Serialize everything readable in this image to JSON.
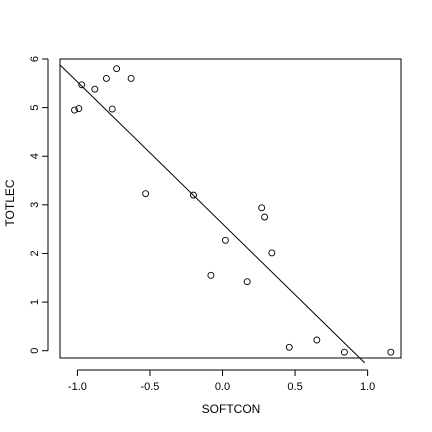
{
  "chart_data": {
    "type": "scatter",
    "title": "",
    "xlabel": "SOFTCON",
    "ylabel": "TOTLEC",
    "xlim": [
      -1.12,
      1.23
    ],
    "ylim": [
      -0.15,
      6.0
    ],
    "x_ticks": [
      -1.0,
      -0.5,
      0.0,
      0.5,
      1.0
    ],
    "x_tick_labels": [
      "-1.0",
      "-0.5",
      "0.0",
      "0.5",
      "1.0"
    ],
    "y_ticks": [
      0,
      1,
      2,
      3,
      4,
      5,
      6
    ],
    "y_tick_labels": [
      "0",
      "1",
      "2",
      "3",
      "4",
      "5",
      "6"
    ],
    "grid": false,
    "points": [
      {
        "x": -1.02,
        "y": 4.95
      },
      {
        "x": -0.99,
        "y": 4.98
      },
      {
        "x": -0.97,
        "y": 5.47
      },
      {
        "x": -0.88,
        "y": 5.38
      },
      {
        "x": -0.8,
        "y": 5.6
      },
      {
        "x": -0.76,
        "y": 4.97
      },
      {
        "x": -0.73,
        "y": 5.8
      },
      {
        "x": -0.63,
        "y": 5.6
      },
      {
        "x": -0.53,
        "y": 3.23
      },
      {
        "x": -0.2,
        "y": 3.2
      },
      {
        "x": -0.08,
        "y": 1.55
      },
      {
        "x": 0.02,
        "y": 2.27
      },
      {
        "x": 0.17,
        "y": 1.42
      },
      {
        "x": 0.27,
        "y": 2.94
      },
      {
        "x": 0.29,
        "y": 2.75
      },
      {
        "x": 0.34,
        "y": 2.01
      },
      {
        "x": 0.46,
        "y": 0.07
      },
      {
        "x": 0.65,
        "y": 0.22
      },
      {
        "x": 0.84,
        "y": -0.03
      },
      {
        "x": 1.16,
        "y": -0.03
      }
    ],
    "fit_line": {
      "x": [
        -1.12,
        0.98
      ],
      "y": [
        5.88,
        -0.25
      ]
    }
  }
}
